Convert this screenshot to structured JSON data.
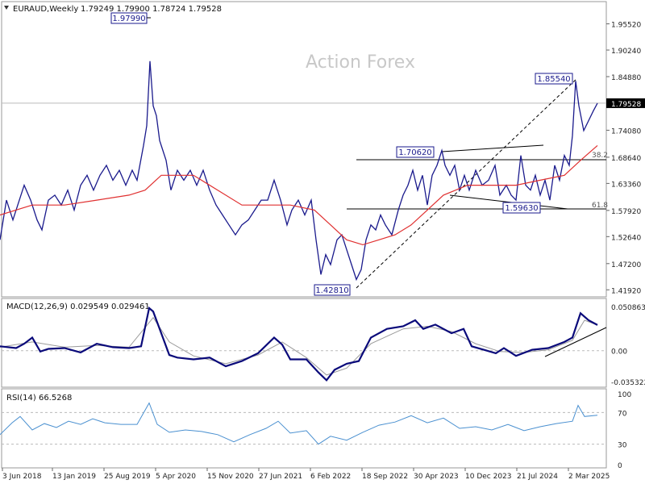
{
  "header": {
    "symbol": "EURAUD,Weekly",
    "ohlc": "1.79249 1.79900 1.78724 1.79528"
  },
  "watermark": "Action Forex",
  "colors": {
    "price": "#1a1a8c",
    "ma": "#e03030",
    "macd_main": "#0a0a7a",
    "macd_signal": "#9a9a9a",
    "rsi": "#4a90d0",
    "grid": "#bbbbbb",
    "axis_text": "#222222"
  },
  "chart_data": [
    {
      "type": "line",
      "panel": "price",
      "x_ticks": [
        "3 Jun 2018",
        "13 Jan 2019",
        "25 Aug 2019",
        "5 Apr 2020",
        "15 Nov 2020",
        "27 Jun 2021",
        "6 Feb 2022",
        "18 Sep 2022",
        "30 Apr 2023",
        "10 Dec 2023",
        "21 Jul 2024",
        "2 Mar 2025"
      ],
      "y_ticks": [
        "1.95520",
        "1.90240",
        "1.84880",
        "1.79528",
        "1.74080",
        "1.68640",
        "1.63360",
        "1.57920",
        "1.52640",
        "1.47200",
        "1.41920"
      ],
      "ylim": [
        1.405,
        2.0
      ],
      "current_price": "1.79528",
      "series": [
        {
          "kind": "close",
          "values": [
            [
              0,
              1.52
            ],
            [
              8,
              1.6
            ],
            [
              16,
              1.56
            ],
            [
              22,
              1.59
            ],
            [
              30,
              1.63
            ],
            [
              38,
              1.6
            ],
            [
              46,
              1.56
            ],
            [
              52,
              1.54
            ],
            [
              60,
              1.6
            ],
            [
              68,
              1.61
            ],
            [
              76,
              1.59
            ],
            [
              84,
              1.62
            ],
            [
              92,
              1.58
            ],
            [
              100,
              1.63
            ],
            [
              108,
              1.65
            ],
            [
              116,
              1.62
            ],
            [
              124,
              1.65
            ],
            [
              132,
              1.67
            ],
            [
              140,
              1.64
            ],
            [
              148,
              1.66
            ],
            [
              156,
              1.63
            ],
            [
              164,
              1.66
            ],
            [
              170,
              1.64
            ],
            [
              178,
              1.71
            ],
            [
              182,
              1.75
            ],
            [
              186,
              1.88
            ],
            [
              190,
              1.79
            ],
            [
              194,
              1.77
            ],
            [
              198,
              1.72
            ],
            [
              202,
              1.7
            ],
            [
              206,
              1.68
            ],
            [
              212,
              1.62
            ],
            [
              220,
              1.66
            ],
            [
              228,
              1.64
            ],
            [
              236,
              1.66
            ],
            [
              244,
              1.63
            ],
            [
              252,
              1.66
            ],
            [
              260,
              1.62
            ],
            [
              268,
              1.59
            ],
            [
              276,
              1.57
            ],
            [
              284,
              1.55
            ],
            [
              292,
              1.53
            ],
            [
              300,
              1.55
            ],
            [
              308,
              1.56
            ],
            [
              316,
              1.58
            ],
            [
              324,
              1.6
            ],
            [
              332,
              1.6
            ],
            [
              340,
              1.64
            ],
            [
              348,
              1.6
            ],
            [
              356,
              1.55
            ],
            [
              362,
              1.58
            ],
            [
              370,
              1.6
            ],
            [
              378,
              1.57
            ],
            [
              386,
              1.6
            ],
            [
              392,
              1.52
            ],
            [
              398,
              1.45
            ],
            [
              404,
              1.49
            ],
            [
              410,
              1.47
            ],
            [
              418,
              1.52
            ],
            [
              424,
              1.53
            ],
            [
              430,
              1.5
            ],
            [
              436,
              1.47
            ],
            [
              442,
              1.44
            ],
            [
              448,
              1.46
            ],
            [
              454,
              1.52
            ],
            [
              460,
              1.55
            ],
            [
              466,
              1.54
            ],
            [
              472,
              1.57
            ],
            [
              478,
              1.55
            ],
            [
              486,
              1.53
            ],
            [
              494,
              1.58
            ],
            [
              500,
              1.61
            ],
            [
              506,
              1.63
            ],
            [
              512,
              1.66
            ],
            [
              518,
              1.62
            ],
            [
              524,
              1.65
            ],
            [
              530,
              1.59
            ],
            [
              536,
              1.65
            ],
            [
              542,
              1.67
            ],
            [
              548,
              1.7
            ],
            [
              552,
              1.67
            ],
            [
              558,
              1.65
            ],
            [
              564,
              1.67
            ],
            [
              570,
              1.62
            ],
            [
              576,
              1.65
            ],
            [
              582,
              1.62
            ],
            [
              590,
              1.66
            ],
            [
              598,
              1.63
            ],
            [
              606,
              1.64
            ],
            [
              614,
              1.67
            ],
            [
              620,
              1.61
            ],
            [
              628,
              1.63
            ],
            [
              634,
              1.61
            ],
            [
              640,
              1.6
            ],
            [
              646,
              1.69
            ],
            [
              652,
              1.63
            ],
            [
              658,
              1.62
            ],
            [
              664,
              1.65
            ],
            [
              670,
              1.61
            ],
            [
              676,
              1.64
            ],
            [
              682,
              1.6
            ],
            [
              688,
              1.67
            ],
            [
              694,
              1.64
            ],
            [
              700,
              1.69
            ],
            [
              706,
              1.67
            ],
            [
              710,
              1.73
            ],
            [
              714,
              1.84
            ],
            [
              718,
              1.79
            ],
            [
              724,
              1.74
            ],
            [
              730,
              1.76
            ],
            [
              736,
              1.78
            ],
            [
              741,
              1.79528
            ]
          ]
        },
        {
          "kind": "moving_average",
          "values": [
            [
              0,
              1.57
            ],
            [
              40,
              1.59
            ],
            [
              80,
              1.59
            ],
            [
              120,
              1.6
            ],
            [
              160,
              1.61
            ],
            [
              180,
              1.62
            ],
            [
              200,
              1.65
            ],
            [
              240,
              1.65
            ],
            [
              270,
              1.62
            ],
            [
              300,
              1.59
            ],
            [
              330,
              1.59
            ],
            [
              360,
              1.59
            ],
            [
              390,
              1.58
            ],
            [
              410,
              1.55
            ],
            [
              430,
              1.52
            ],
            [
              450,
              1.51
            ],
            [
              470,
              1.52
            ],
            [
              490,
              1.53
            ],
            [
              510,
              1.55
            ],
            [
              530,
              1.58
            ],
            [
              550,
              1.61
            ],
            [
              580,
              1.63
            ],
            [
              610,
              1.63
            ],
            [
              640,
              1.63
            ],
            [
              670,
              1.64
            ],
            [
              700,
              1.65
            ],
            [
              720,
              1.68
            ],
            [
              741,
              1.71
            ]
          ]
        }
      ],
      "annotations": [
        {
          "label": "1.97990",
          "price": 1.9799
        },
        {
          "label": "1.85540",
          "price": 1.8554
        },
        {
          "label": "1.70620",
          "price": 1.7062
        },
        {
          "label": "1.59630",
          "price": 1.5963
        },
        {
          "label": "1.42810",
          "price": 1.4281
        },
        {
          "label": "38.2",
          "price": 1.6908
        },
        {
          "label": "61.8",
          "price": 1.5948
        }
      ]
    },
    {
      "type": "line",
      "panel": "macd",
      "title": "MACD(12,26,9) 0.029549 0.029461",
      "y_ticks": [
        "0.050863",
        "0.00",
        "-0.035322"
      ],
      "ylim": [
        -0.042,
        0.06
      ],
      "series": [
        {
          "kind": "macd_main",
          "values": [
            [
              0,
              0.005
            ],
            [
              20,
              0.003
            ],
            [
              30,
              0.008
            ],
            [
              40,
              0.015
            ],
            [
              50,
              -0.001
            ],
            [
              60,
              0.002
            ],
            [
              80,
              0.003
            ],
            [
              100,
              -0.002
            ],
            [
              120,
              0.008
            ],
            [
              140,
              0.004
            ],
            [
              160,
              0.003
            ],
            [
              175,
              0.005
            ],
            [
              185,
              0.049
            ],
            [
              190,
              0.045
            ],
            [
              200,
              0.02
            ],
            [
              210,
              -0.005
            ],
            [
              220,
              -0.008
            ],
            [
              240,
              -0.01
            ],
            [
              260,
              -0.008
            ],
            [
              280,
              -0.018
            ],
            [
              300,
              -0.012
            ],
            [
              320,
              -0.003
            ],
            [
              340,
              0.015
            ],
            [
              350,
              0.007
            ],
            [
              360,
              -0.01
            ],
            [
              380,
              -0.01
            ],
            [
              395,
              -0.025
            ],
            [
              405,
              -0.034
            ],
            [
              415,
              -0.022
            ],
            [
              430,
              -0.015
            ],
            [
              445,
              -0.012
            ],
            [
              460,
              0.015
            ],
            [
              480,
              0.025
            ],
            [
              500,
              0.028
            ],
            [
              515,
              0.035
            ],
            [
              525,
              0.025
            ],
            [
              540,
              0.03
            ],
            [
              560,
              0.02
            ],
            [
              575,
              0.025
            ],
            [
              585,
              0.005
            ],
            [
              600,
              0.001
            ],
            [
              615,
              -0.003
            ],
            [
              625,
              0.003
            ],
            [
              640,
              -0.006
            ],
            [
              660,
              0.001
            ],
            [
              680,
              0.003
            ],
            [
              700,
              0.01
            ],
            [
              710,
              0.015
            ],
            [
              720,
              0.043
            ],
            [
              730,
              0.035
            ],
            [
              741,
              0.0295
            ]
          ]
        },
        {
          "kind": "macd_signal",
          "values": [
            [
              0,
              0.004
            ],
            [
              40,
              0.01
            ],
            [
              80,
              0.004
            ],
            [
              120,
              0.006
            ],
            [
              160,
              0.004
            ],
            [
              190,
              0.038
            ],
            [
              210,
              0.01
            ],
            [
              240,
              -0.006
            ],
            [
              280,
              -0.015
            ],
            [
              320,
              -0.005
            ],
            [
              350,
              0.01
            ],
            [
              380,
              -0.008
            ],
            [
              405,
              -0.028
            ],
            [
              430,
              -0.02
            ],
            [
              460,
              0.008
            ],
            [
              500,
              0.025
            ],
            [
              530,
              0.028
            ],
            [
              560,
              0.022
            ],
            [
              590,
              0.008
            ],
            [
              620,
              -0.001
            ],
            [
              650,
              -0.002
            ],
            [
              680,
              0.001
            ],
            [
              710,
              0.012
            ],
            [
              725,
              0.035
            ],
            [
              741,
              0.0295
            ]
          ]
        }
      ]
    },
    {
      "type": "line",
      "panel": "rsi",
      "title": "RSI(14) 66.5268",
      "y_ticks": [
        "100",
        "70",
        "30",
        "0"
      ],
      "ylim": [
        0,
        100
      ],
      "series": [
        {
          "kind": "rsi",
          "values": [
            [
              0,
              42
            ],
            [
              15,
              57
            ],
            [
              25,
              65
            ],
            [
              40,
              48
            ],
            [
              55,
              56
            ],
            [
              70,
              51
            ],
            [
              85,
              59
            ],
            [
              100,
              55
            ],
            [
              115,
              62
            ],
            [
              130,
              57
            ],
            [
              150,
              55
            ],
            [
              170,
              55
            ],
            [
              185,
              82
            ],
            [
              195,
              55
            ],
            [
              210,
              45
            ],
            [
              230,
              48
            ],
            [
              250,
              46
            ],
            [
              270,
              42
            ],
            [
              290,
              33
            ],
            [
              310,
              42
            ],
            [
              330,
              50
            ],
            [
              345,
              59
            ],
            [
              360,
              44
            ],
            [
              380,
              47
            ],
            [
              395,
              30
            ],
            [
              410,
              40
            ],
            [
              430,
              35
            ],
            [
              450,
              45
            ],
            [
              470,
              54
            ],
            [
              490,
              58
            ],
            [
              510,
              66
            ],
            [
              530,
              57
            ],
            [
              550,
              63
            ],
            [
              570,
              50
            ],
            [
              590,
              52
            ],
            [
              610,
              48
            ],
            [
              630,
              55
            ],
            [
              650,
              47
            ],
            [
              670,
              52
            ],
            [
              690,
              56
            ],
            [
              710,
              59
            ],
            [
              717,
              79
            ],
            [
              725,
              65
            ],
            [
              741,
              66.5
            ]
          ]
        }
      ]
    }
  ]
}
